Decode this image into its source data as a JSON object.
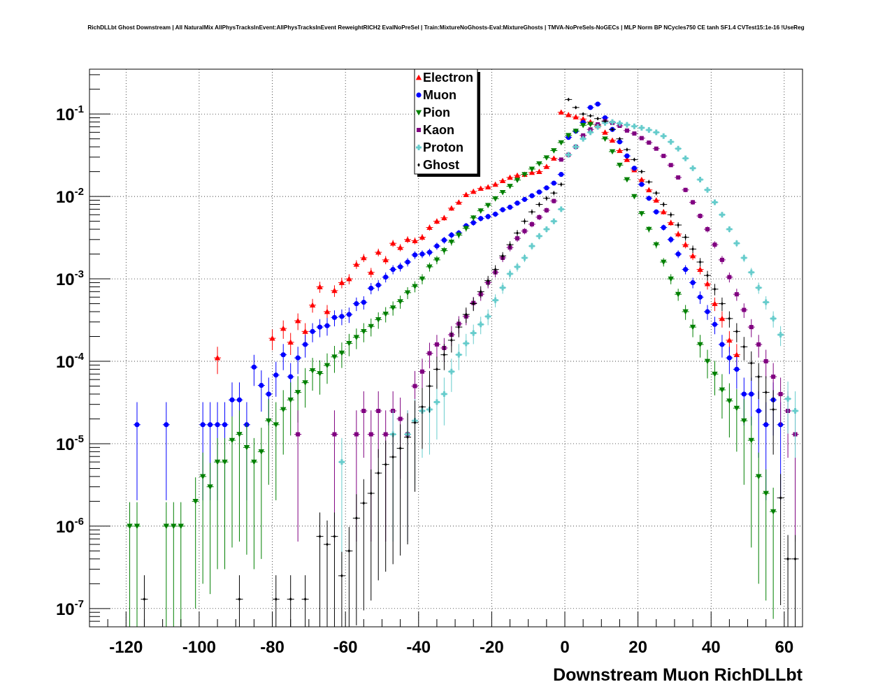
{
  "title": "RichDLLbt Ghost Downstream | All NaturalMix AllPhysTracksInEvent:AllPhysTracksInEvent ReweightRICH2 EvalNoPreSel | Train:MixtureNoGhosts-Eval:MixtureGhosts | TMVA-NoPreSels-NoGECs | MLP Norm BP NCycles750 CE tanh SF1.4 CVTest15:1e-16 !UseReg",
  "chart_data": {
    "type": "scatter",
    "xlabel": "Downstream Muon RichDLLbt",
    "ylabel": "",
    "xlim": [
      -130,
      65
    ],
    "ylim": [
      6e-08,
      0.35
    ],
    "yscale": "log",
    "grid": true,
    "legend_position": "top-center",
    "x_ticks": [
      "-120",
      "-100",
      "-80",
      "-60",
      "-40",
      "-20",
      "0",
      "20",
      "40",
      "60"
    ],
    "x_tick_values": [
      -120,
      -100,
      -80,
      -60,
      -40,
      -20,
      0,
      20,
      40,
      60
    ],
    "y_ticks": [
      {
        "base": "10",
        "exp": "-7",
        "value": 1e-07
      },
      {
        "base": "10",
        "exp": "-6",
        "value": 1e-06
      },
      {
        "base": "10",
        "exp": "-5",
        "value": 1e-05
      },
      {
        "base": "10",
        "exp": "-4",
        "value": 0.0001
      },
      {
        "base": "10",
        "exp": "-3",
        "value": 0.001
      },
      {
        "base": "10",
        "exp": "-2",
        "value": 0.01
      },
      {
        "base": "10",
        "exp": "-1",
        "value": 0.1
      }
    ],
    "series": [
      {
        "name": "Electron",
        "color": "#ff0000",
        "marker": "triangle-up",
        "x": [
          -95,
          -80,
          -77,
          -75,
          -73,
          -71,
          -69,
          -67,
          -65,
          -63,
          -61,
          -59,
          -57,
          -55,
          -53,
          -51,
          -49,
          -47,
          -45,
          -43,
          -41,
          -39,
          -37,
          -35,
          -33,
          -31,
          -29,
          -27,
          -25,
          -23,
          -21,
          -19,
          -17,
          -15,
          -13,
          -11,
          -9,
          -7,
          -5,
          -3,
          -1,
          1,
          3,
          5,
          7,
          9,
          11,
          13,
          15,
          17,
          19,
          21,
          23,
          25,
          27,
          29,
          31,
          33,
          35,
          37,
          39,
          41,
          43,
          45,
          47
        ],
        "y": [
          0.00011,
          0.00019,
          0.00025,
          0.00017,
          0.00031,
          0.00023,
          0.00048,
          0.0008,
          0.0004,
          0.00072,
          0.0009,
          0.001,
          0.0015,
          0.0018,
          0.0012,
          0.0021,
          0.0017,
          0.0027,
          0.0024,
          0.003,
          0.0029,
          0.0032,
          0.0042,
          0.005,
          0.0055,
          0.0072,
          0.0085,
          0.0105,
          0.0115,
          0.0125,
          0.013,
          0.014,
          0.0155,
          0.017,
          0.018,
          0.0185,
          0.0195,
          0.02,
          0.023,
          0.029,
          0.105,
          0.098,
          0.092,
          0.087,
          0.08,
          0.072,
          0.06,
          0.048,
          0.036,
          0.028,
          0.021,
          0.016,
          0.012,
          0.009,
          0.0065,
          0.0048,
          0.0035,
          0.0026,
          0.0019,
          0.0013,
          0.00087,
          0.0005,
          0.00033,
          0.00018,
          0.00012
        ]
      },
      {
        "name": "Muon",
        "color": "#0000ff",
        "marker": "circle",
        "x": [
          -117,
          -109,
          -99,
          -97,
          -95,
          -93,
          -91,
          -89,
          -87,
          -85,
          -83,
          -81,
          -79,
          -77,
          -75,
          -73,
          -71,
          -69,
          -67,
          -65,
          -63,
          -61,
          -59,
          -57,
          -55,
          -53,
          -51,
          -49,
          -47,
          -45,
          -43,
          -41,
          -39,
          -37,
          -35,
          -33,
          -31,
          -29,
          -27,
          -25,
          -23,
          -21,
          -19,
          -17,
          -15,
          -13,
          -11,
          -9,
          -7,
          -5,
          -3,
          -1,
          1,
          3,
          5,
          7,
          9,
          11,
          13,
          15,
          17,
          19,
          21,
          23,
          25,
          27,
          29,
          31,
          33,
          35,
          37,
          39,
          41,
          43,
          45,
          47,
          49,
          51,
          53,
          55,
          57,
          59
        ],
        "y": [
          1.7e-05,
          1.7e-05,
          1.7e-05,
          1.7e-05,
          1.7e-05,
          1.7e-05,
          3.4e-05,
          3.4e-05,
          1.7e-05,
          8.5e-05,
          5.1e-05,
          4e-05,
          6.8e-05,
          0.00012,
          6.5e-05,
          0.00011,
          0.00016,
          0.00023,
          0.00026,
          0.00027,
          0.00034,
          0.00035,
          0.00037,
          0.0005,
          0.00052,
          0.00077,
          0.00084,
          0.00105,
          0.0013,
          0.0014,
          0.0016,
          0.00195,
          0.002,
          0.0021,
          0.0025,
          0.00295,
          0.0034,
          0.0036,
          0.0044,
          0.0048,
          0.0054,
          0.0057,
          0.0061,
          0.0069,
          0.0074,
          0.0083,
          0.0092,
          0.0102,
          0.0113,
          0.0127,
          0.0145,
          0.0185,
          0.052,
          0.062,
          0.079,
          0.12,
          0.132,
          0.09,
          0.065,
          0.046,
          0.031,
          0.022,
          0.014,
          0.0095,
          0.0065,
          0.0042,
          0.003,
          0.002,
          0.0013,
          0.0009,
          0.0006,
          0.0004,
          0.00028,
          0.00016,
          0.00011,
          8e-05,
          4e-05,
          4e-05,
          2.5e-05,
          1.7e-05,
          3.4e-05,
          1.7e-05
        ]
      },
      {
        "name": "Pion",
        "color": "#008000",
        "marker": "triangle-down",
        "x": [
          -119,
          -117,
          -109,
          -107,
          -105,
          -101,
          -99,
          -97,
          -95,
          -93,
          -91,
          -89,
          -87,
          -85,
          -83,
          -81,
          -79,
          -77,
          -75,
          -73,
          -71,
          -69,
          -67,
          -65,
          -63,
          -61,
          -59,
          -57,
          -55,
          -53,
          -51,
          -49,
          -47,
          -45,
          -43,
          -41,
          -39,
          -37,
          -35,
          -33,
          -31,
          -29,
          -27,
          -25,
          -23,
          -21,
          -19,
          -17,
          -15,
          -13,
          -11,
          -9,
          -7,
          -5,
          -3,
          -1,
          1,
          3,
          5,
          7,
          9,
          11,
          13,
          15,
          17,
          19,
          21,
          23,
          25,
          27,
          29,
          31,
          33,
          35,
          37,
          39,
          41,
          43,
          45,
          47,
          49,
          51,
          53,
          55,
          57
        ],
        "y": [
          1e-06,
          1e-06,
          1e-06,
          1e-06,
          1e-06,
          2e-06,
          4e-06,
          3e-06,
          6e-06,
          6e-06,
          1.1e-05,
          1.3e-05,
          9e-06,
          6e-06,
          8e-06,
          1.9e-05,
          1.7e-05,
          2.6e-05,
          3.4e-05,
          4.2e-05,
          5.5e-05,
          7.7e-05,
          7.1e-05,
          8.9e-05,
          0.000113,
          0.000126,
          0.000165,
          0.000195,
          0.00023,
          0.000265,
          0.00032,
          0.000375,
          0.000445,
          0.00053,
          0.00068,
          0.00081,
          0.001,
          0.0014,
          0.0017,
          0.0022,
          0.0028,
          0.0034,
          0.0041,
          0.0055,
          0.0067,
          0.0078,
          0.0094,
          0.0112,
          0.0133,
          0.0158,
          0.0185,
          0.0215,
          0.025,
          0.0295,
          0.036,
          0.045,
          0.055,
          0.062,
          0.073,
          0.075,
          0.07,
          0.05,
          0.035,
          0.024,
          0.016,
          0.01,
          0.0062,
          0.004,
          0.0026,
          0.0016,
          0.001,
          0.00065,
          0.0004,
          0.00026,
          0.00016,
          0.0001,
          7e-05,
          4.5e-05,
          3.3e-05,
          2.7e-05,
          1.9e-05,
          1.1e-05,
          4e-06,
          2.5e-06,
          1.5e-06
        ]
      },
      {
        "name": "Kaon",
        "color": "#800080",
        "marker": "square",
        "x": [
          -73,
          -63,
          -57,
          -55,
          -53,
          -51,
          -49,
          -47,
          -45,
          -43,
          -41,
          -39,
          -37,
          -35,
          -33,
          -31,
          -29,
          -27,
          -25,
          -23,
          -21,
          -19,
          -17,
          -15,
          -13,
          -11,
          -9,
          -7,
          -5,
          -3,
          -1,
          1,
          3,
          5,
          7,
          9,
          11,
          13,
          15,
          17,
          19,
          21,
          23,
          25,
          27,
          29,
          31,
          33,
          35,
          37,
          39,
          41,
          43,
          45,
          47,
          49,
          51,
          53,
          55,
          57,
          59,
          61,
          63
        ],
        "y": [
          1.3e-05,
          1.3e-05,
          1.3e-05,
          2.5e-05,
          1.3e-05,
          2.5e-05,
          1.3e-05,
          2.5e-05,
          2e-05,
          1.3e-05,
          5e-05,
          7.5e-05,
          0.000125,
          0.00016,
          0.000145,
          0.00021,
          0.000285,
          0.00035,
          0.00051,
          0.00065,
          0.0009,
          0.0012,
          0.0018,
          0.0024,
          0.0031,
          0.0038,
          0.0046,
          0.0056,
          0.0068,
          0.0088,
          0.028,
          0.032,
          0.04,
          0.055,
          0.065,
          0.075,
          0.082,
          0.078,
          0.072,
          0.063,
          0.058,
          0.051,
          0.045,
          0.038,
          0.031,
          0.024,
          0.017,
          0.012,
          0.0085,
          0.0058,
          0.004,
          0.0026,
          0.0017,
          0.00105,
          0.00065,
          0.00042,
          0.00026,
          0.00016,
          0.0001,
          6.5e-05,
          4e-05,
          2.5e-05,
          1.3e-05
        ]
      },
      {
        "name": "Proton",
        "color": "#66cccc",
        "marker": "cross",
        "x": [
          -61,
          -47,
          -43,
          -41,
          -39,
          -37,
          -35,
          -33,
          -31,
          -29,
          -27,
          -25,
          -23,
          -21,
          -19,
          -17,
          -15,
          -13,
          -11,
          -9,
          -7,
          -5,
          -3,
          -1,
          1,
          3,
          5,
          7,
          9,
          11,
          13,
          15,
          17,
          19,
          21,
          23,
          25,
          27,
          29,
          31,
          33,
          35,
          37,
          39,
          41,
          43,
          45,
          47,
          49,
          51,
          53,
          55,
          57,
          59,
          61,
          63
        ],
        "y": [
          6e-06,
          1.3e-05,
          1.3e-05,
          1.9e-05,
          2.5e-05,
          2.6e-05,
          3.2e-05,
          4e-05,
          7.5e-05,
          0.00012,
          0.000165,
          0.00022,
          0.00028,
          0.00035,
          0.00055,
          0.00078,
          0.00115,
          0.0014,
          0.0018,
          0.0025,
          0.0033,
          0.004,
          0.005,
          0.007,
          0.032,
          0.04,
          0.05,
          0.06,
          0.07,
          0.078,
          0.08,
          0.077,
          0.074,
          0.071,
          0.068,
          0.064,
          0.06,
          0.054,
          0.046,
          0.038,
          0.029,
          0.022,
          0.016,
          0.012,
          0.0085,
          0.006,
          0.004,
          0.0027,
          0.0018,
          0.0012,
          0.00078,
          0.00052,
          0.00033,
          0.00021,
          3.5e-05,
          2.5e-05
        ]
      },
      {
        "name": "Ghost",
        "color": "#000000",
        "marker": "diamond",
        "x": [
          -115,
          -89,
          -79,
          -75,
          -71,
          -67,
          -65,
          -63,
          -61,
          -59,
          -57,
          -55,
          -53,
          -51,
          -49,
          -47,
          -45,
          -43,
          -41,
          -39,
          -37,
          -35,
          -33,
          -31,
          -29,
          -27,
          -25,
          -23,
          -21,
          -19,
          -17,
          -15,
          -13,
          -11,
          -9,
          -7,
          -5,
          -3,
          -1,
          1,
          3,
          5,
          7,
          9,
          11,
          13,
          15,
          17,
          19,
          21,
          23,
          25,
          27,
          29,
          31,
          33,
          35,
          37,
          39,
          41,
          43,
          45,
          47,
          49,
          51,
          53,
          55,
          57,
          59,
          61,
          63
        ],
        "y": [
          1.3e-07,
          1.3e-07,
          1.3e-07,
          1.3e-07,
          1.3e-07,
          7.5e-07,
          6e-07,
          7.5e-07,
          2.5e-07,
          5e-07,
          1.25e-06,
          1.9e-06,
          2.5e-06,
          4.4e-06,
          5.6e-06,
          6.9e-06,
          8.8e-06,
          1.2e-05,
          1.8e-05,
          2.8e-05,
          5e-05,
          8e-05,
          0.00012,
          0.00018,
          0.00026,
          0.00037,
          0.0005,
          0.0007,
          0.00095,
          0.0013,
          0.0019,
          0.0026,
          0.0036,
          0.005,
          0.0065,
          0.008,
          0.0095,
          0.011,
          0.014,
          0.15,
          0.12,
          0.1,
          0.095,
          0.088,
          0.082,
          0.065,
          0.05,
          0.037,
          0.028,
          0.02,
          0.015,
          0.011,
          0.008,
          0.006,
          0.0045,
          0.0032,
          0.0023,
          0.0016,
          0.0011,
          0.00075,
          0.0005,
          0.00033,
          0.00023,
          0.00015,
          9.5e-05,
          6.5e-05,
          4.2e-05,
          2.6e-05,
          2.2e-06,
          4e-07,
          4e-07
        ]
      }
    ]
  }
}
